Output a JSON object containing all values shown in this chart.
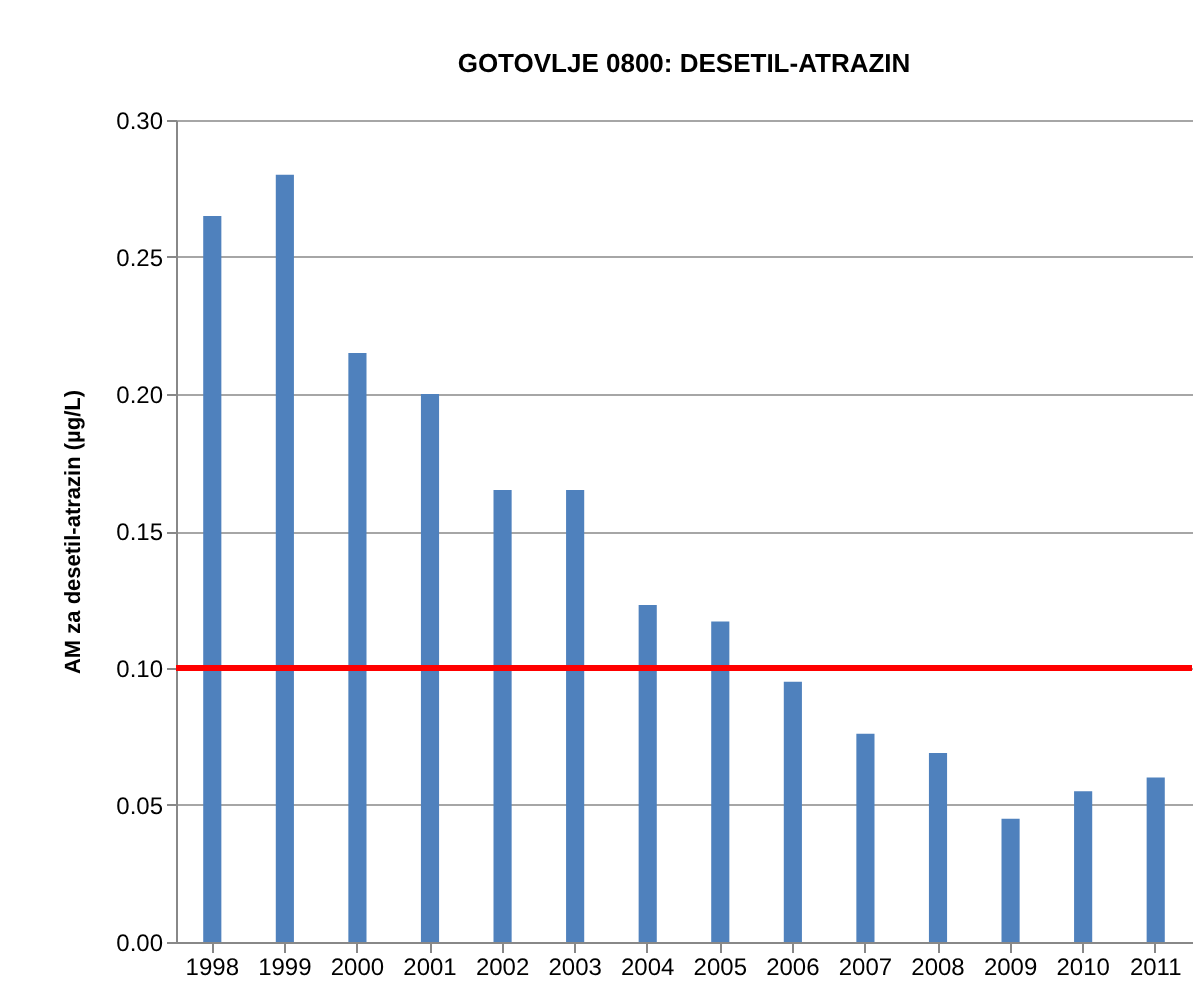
{
  "chart_data": {
    "type": "bar",
    "title": "GOTOVLJE 0800: DESETIL-ATRAZIN",
    "ylabel": "AM za desetil-atrazin (µg/L)",
    "categories": [
      "1998",
      "1999",
      "2000",
      "2001",
      "2002",
      "2003",
      "2004",
      "2005",
      "2006",
      "2007",
      "2008",
      "2009",
      "2010",
      "2011"
    ],
    "values": [
      0.265,
      0.28,
      0.215,
      0.2,
      0.165,
      0.165,
      0.123,
      0.117,
      0.095,
      0.076,
      0.069,
      0.045,
      0.055,
      0.06
    ],
    "color": "#4f81bd",
    "ylim": [
      0,
      0.3
    ],
    "yticks": [
      {
        "value": 0,
        "label": "0.00"
      },
      0.05,
      {
        "value": 0.1,
        "label": "0.10"
      },
      0.15,
      {
        "value": 0.2,
        "label": "0.20"
      },
      0.25,
      {
        "value": 0.3,
        "label": "0.30"
      }
    ],
    "grid": "y",
    "ref_lines": [
      {
        "axis": "y",
        "value": 0.1,
        "color": "#ff0000"
      }
    ]
  }
}
